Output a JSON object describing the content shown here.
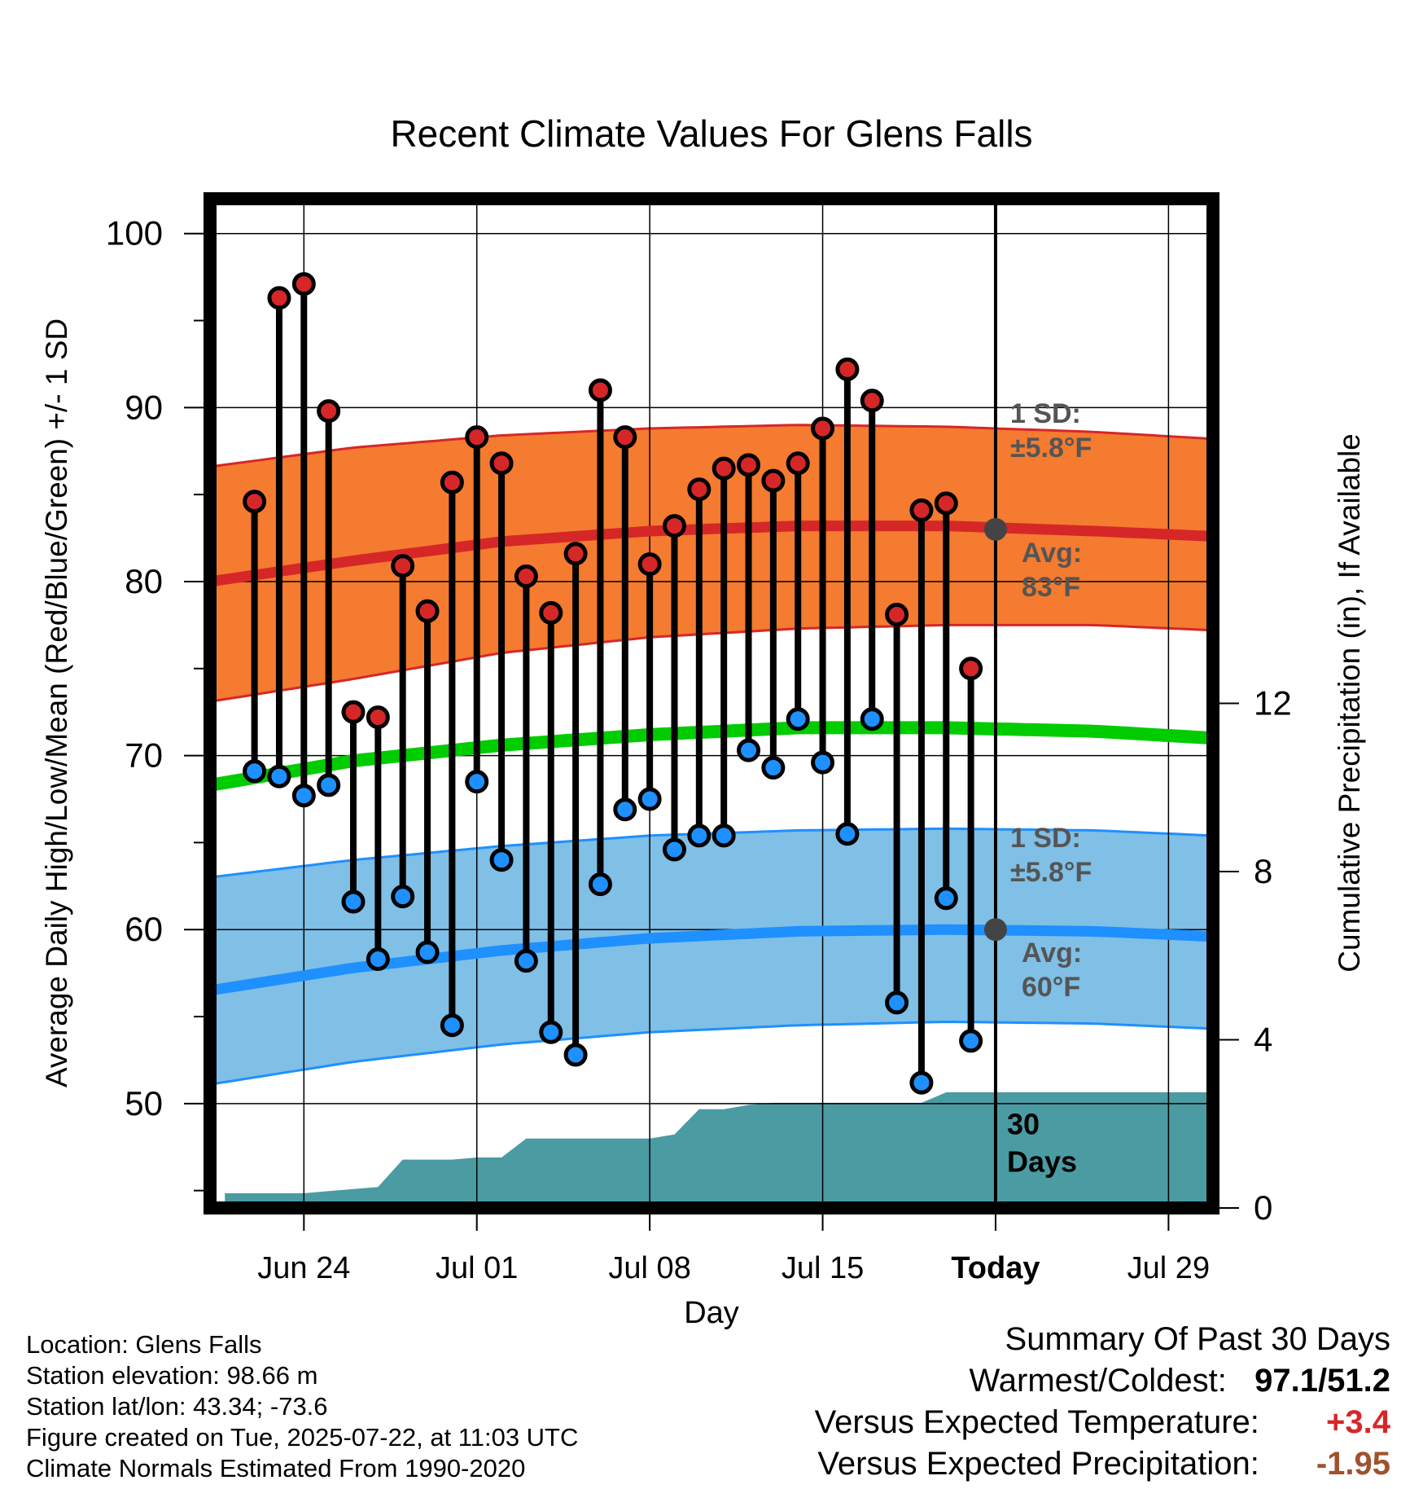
{
  "colors": {
    "high_band": "#f47b2f",
    "high_edge": "#d62728",
    "high_avg": "#d62728",
    "low_band": "#80bfe6",
    "low_edge": "#1e90ff",
    "low_avg": "#1e90ff",
    "mean_line": "#00cc00",
    "precip": "#4b9ba3",
    "high_dot": "#d62728",
    "low_dot": "#1e90ff",
    "today_dot": "#444444",
    "annot": "#555555",
    "pos_value": "#d62728",
    "neg_value": "#a0522d"
  },
  "chart_data": {
    "type": "line",
    "title": "Recent Climate Values For Glens Falls",
    "xlabel": "Day",
    "ylabel": "Average Daily High/Low/Mean (Red/Blue/Green) +/- 1 SD",
    "y2label": "Cumulative Precipitation (in), If Available",
    "ylim": [
      44,
      102
    ],
    "y2lim": [
      0,
      24
    ],
    "xlim": [
      -1.8,
      38.8
    ],
    "x_unit": "days after Jun 22",
    "yticks": [
      50,
      60,
      70,
      80,
      90,
      100
    ],
    "y2ticks": [
      0,
      4,
      8,
      12
    ],
    "xticks": [
      {
        "x": 2,
        "label": "Jun 24"
      },
      {
        "x": 9,
        "label": "Jul 01"
      },
      {
        "x": 16,
        "label": "Jul 08"
      },
      {
        "x": 23,
        "label": "Jul 15"
      },
      {
        "x": 30,
        "label": "Today"
      },
      {
        "x": 37,
        "label": "Jul 29"
      }
    ],
    "today_x": 30,
    "grid": true,
    "normals": {
      "x": [
        -1.8,
        4,
        10,
        16,
        22,
        28,
        34,
        38.8
      ],
      "high_avg": [
        80.0,
        81.2,
        82.3,
        82.9,
        83.2,
        83.2,
        82.9,
        82.6
      ],
      "high_plus_sd": [
        86.6,
        87.7,
        88.4,
        88.8,
        89.0,
        88.9,
        88.6,
        88.2
      ],
      "high_minus_sd": [
        73.1,
        74.4,
        75.9,
        76.8,
        77.3,
        77.5,
        77.5,
        77.2
      ],
      "mean": [
        68.3,
        69.7,
        70.6,
        71.2,
        71.6,
        71.6,
        71.4,
        71.0
      ],
      "low_avg": [
        56.5,
        57.8,
        58.8,
        59.5,
        59.9,
        60.0,
        59.9,
        59.6
      ],
      "low_plus_sd": [
        63.0,
        64.0,
        64.8,
        65.4,
        65.7,
        65.8,
        65.7,
        65.4
      ],
      "low_minus_sd": [
        51.1,
        52.4,
        53.4,
        54.1,
        54.5,
        54.7,
        54.6,
        54.3
      ]
    },
    "series": [
      {
        "name": "High",
        "x": [
          0,
          1,
          2,
          3,
          4,
          5,
          6,
          7,
          8,
          9,
          10,
          11,
          12,
          13,
          14,
          15,
          16,
          17,
          18,
          19,
          20,
          21,
          22,
          23,
          24,
          25,
          26,
          27,
          28,
          29
        ],
        "values": [
          84.6,
          96.3,
          97.1,
          89.8,
          72.5,
          72.2,
          80.9,
          78.3,
          85.7,
          88.3,
          86.8,
          80.3,
          78.2,
          81.6,
          91.0,
          88.3,
          81.0,
          83.2,
          85.3,
          86.5,
          86.7,
          85.8,
          86.8,
          88.8,
          92.2,
          90.4,
          78.1,
          84.1,
          84.5,
          75.0
        ]
      },
      {
        "name": "Low",
        "x": [
          0,
          1,
          2,
          3,
          4,
          5,
          6,
          7,
          8,
          9,
          10,
          11,
          12,
          13,
          14,
          15,
          16,
          17,
          18,
          19,
          20,
          21,
          22,
          23,
          24,
          25,
          26,
          27,
          28,
          29
        ],
        "values": [
          69.1,
          68.8,
          67.7,
          68.3,
          61.6,
          58.3,
          61.9,
          58.7,
          54.5,
          68.5,
          64.0,
          58.2,
          54.1,
          52.8,
          62.6,
          66.9,
          67.5,
          64.6,
          65.4,
          65.4,
          70.3,
          69.3,
          72.1,
          69.6,
          65.5,
          72.1,
          55.8,
          51.2,
          61.8,
          53.6
        ]
      }
    ],
    "today_high_avg": 83,
    "today_low_avg": 60,
    "precip": {
      "x": [
        -1.2,
        -1.2,
        0,
        2,
        3,
        4,
        5,
        6,
        7,
        8,
        9,
        10,
        11,
        12,
        13,
        14,
        15,
        16,
        17,
        18,
        19,
        20,
        21,
        22,
        23,
        24,
        25,
        26,
        27,
        28,
        29,
        30,
        38.8
      ],
      "values": [
        0.0,
        0.35,
        0.35,
        0.35,
        0.4,
        0.45,
        0.5,
        1.15,
        1.15,
        1.15,
        1.2,
        1.2,
        1.65,
        1.65,
        1.65,
        1.65,
        1.65,
        1.65,
        1.75,
        2.35,
        2.35,
        2.45,
        2.5,
        2.5,
        2.5,
        2.5,
        2.5,
        2.5,
        2.5,
        2.75,
        2.75,
        2.75,
        2.75
      ]
    },
    "annotations": {
      "high_sd_line1": "1 SD:",
      "high_sd_line2": "±5.8°F",
      "high_avg_line1": "Avg:",
      "high_avg_line2": "83°F",
      "low_sd_line1": "1 SD:",
      "low_sd_line2": "±5.8°F",
      "low_avg_line1": "Avg:",
      "low_avg_line2": "60°F",
      "days_line1": "30",
      "days_line2": "Days"
    }
  },
  "footer": {
    "location": "Location: Glens Falls",
    "elevation": "Station elevation: 98.66 m",
    "latlon": "Station lat/lon: 43.34; -73.6",
    "created": "Figure created on Tue, 2025-07-22, at 11:03 UTC",
    "normals": "Climate Normals Estimated From 1990-2020"
  },
  "summary": {
    "title": "Summary Of Past 30 Days",
    "warmest_label": "Warmest/Coldest:",
    "warmest_value": "97.1/51.2",
    "temp_label": "Versus Expected Temperature:",
    "temp_value": "+3.4",
    "precip_label": "Versus Expected Precipitation:",
    "precip_value": "-1.95"
  }
}
